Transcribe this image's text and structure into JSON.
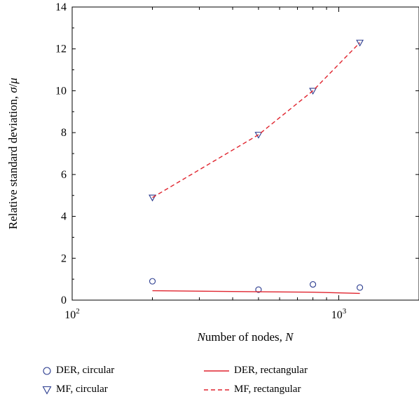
{
  "chart_data": {
    "type": "scatter",
    "xlabel": "Number of nodes, N",
    "ylabel": "Relative standard deviation, σ/μ",
    "xscale": "log",
    "xlim": [
      100,
      2000
    ],
    "ylim": [
      0,
      14
    ],
    "x_ticks": [
      {
        "value": 100,
        "base": "10",
        "exp": "2"
      },
      {
        "value": 1000,
        "base": "10",
        "exp": "3"
      }
    ],
    "y_ticks": [
      0,
      2,
      4,
      6,
      8,
      10,
      12,
      14
    ],
    "grid": false,
    "legend_position": "bottom",
    "series": [
      {
        "name": "DER, circular",
        "style": "markers",
        "marker": "circle",
        "color": "#2b3c8f",
        "x": [
          200,
          500,
          800,
          1200
        ],
        "y": [
          0.9,
          0.5,
          0.75,
          0.6
        ]
      },
      {
        "name": "MF, circular",
        "style": "markers",
        "marker": "triangle-down",
        "color": "#2b3c8f",
        "x": [
          200,
          500,
          800,
          1200
        ],
        "y": [
          4.9,
          7.9,
          10.0,
          12.3
        ]
      },
      {
        "name": "DER, rectangular",
        "style": "line",
        "dash": "solid",
        "color": "#e0242e",
        "x": [
          200,
          500,
          800,
          1200
        ],
        "y": [
          0.45,
          0.4,
          0.38,
          0.32
        ]
      },
      {
        "name": "MF, rectangular",
        "style": "line",
        "dash": "dashed",
        "color": "#e0242e",
        "x": [
          200,
          500,
          800,
          1200
        ],
        "y": [
          4.9,
          7.9,
          10.0,
          12.3
        ]
      }
    ]
  }
}
